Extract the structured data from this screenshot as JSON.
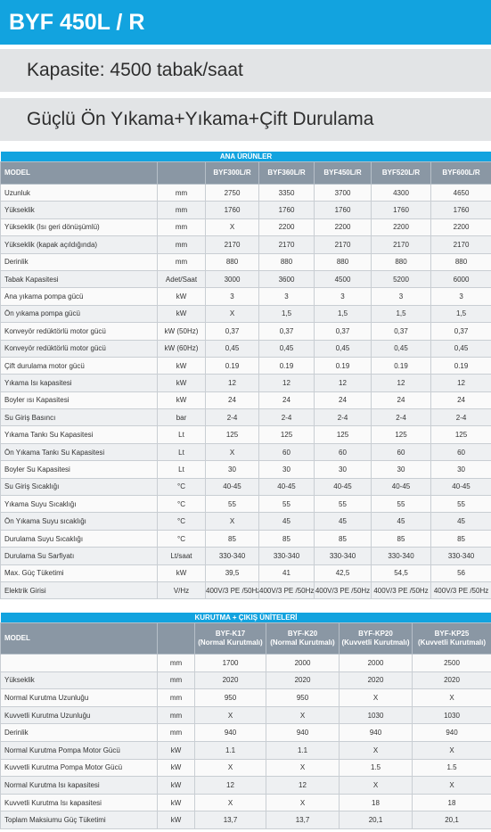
{
  "header": {
    "title": "BYF 450L / R"
  },
  "capacity": "Kapasite: 4500 tabak/saat",
  "subtitle": "Güçlü Ön Yıkama+Yıkama+Çift Durulama",
  "tables": [
    {
      "title": "ANA ÜRÜNLER",
      "model_label": "MODEL",
      "columns": [
        [
          "BYF300L/R"
        ],
        [
          "BYF360L/R"
        ],
        [
          "BYF450L/R"
        ],
        [
          "BYF520L/R"
        ],
        [
          "BYF600L/R"
        ]
      ],
      "rows": [
        [
          "Uzunluk",
          "mm",
          "2750",
          "3350",
          "3700",
          "4300",
          "4650"
        ],
        [
          "Yükseklik",
          "mm",
          "1760",
          "1760",
          "1760",
          "1760",
          "1760"
        ],
        [
          "Yükseklik (Isı geri dönüşümlü)",
          "mm",
          "X",
          "2200",
          "2200",
          "2200",
          "2200"
        ],
        [
          "Yükseklik (kapak açıldığında)",
          "mm",
          "2170",
          "2170",
          "2170",
          "2170",
          "2170"
        ],
        [
          "Derinlik",
          "mm",
          "880",
          "880",
          "880",
          "880",
          "880"
        ],
        [
          "Tabak Kapasitesi",
          "Adet/Saat",
          "3000",
          "3600",
          "4500",
          "5200",
          "6000"
        ],
        [
          "Ana yıkama pompa gücü",
          "kW",
          "3",
          "3",
          "3",
          "3",
          "3"
        ],
        [
          "Ön yıkama pompa gücü",
          "kW",
          "X",
          "1,5",
          "1,5",
          "1,5",
          "1,5"
        ],
        [
          "Konveyör redüktörlü motor gücü",
          "kW (50Hz)",
          "0,37",
          "0,37",
          "0,37",
          "0,37",
          "0,37"
        ],
        [
          "Konveyör redüktörlü motor gücü",
          "kW (60Hz)",
          "0,45",
          "0,45",
          "0,45",
          "0,45",
          "0,45"
        ],
        [
          "Çift durulama motor gücü",
          "kW",
          "0.19",
          "0.19",
          "0.19",
          "0.19",
          "0.19"
        ],
        [
          "Yıkama Isı kapasitesi",
          "kW",
          "12",
          "12",
          "12",
          "12",
          "12"
        ],
        [
          "Boyler ısı Kapasitesi",
          "kW",
          "24",
          "24",
          "24",
          "24",
          "24"
        ],
        [
          "Su Giriş Basıncı",
          "bar",
          "2-4",
          "2-4",
          "2-4",
          "2-4",
          "2-4"
        ],
        [
          "Yıkama Tankı Su Kapasitesi",
          "Lt",
          "125",
          "125",
          "125",
          "125",
          "125"
        ],
        [
          "Ön Yıkama Tankı Su Kapasitesi",
          "Lt",
          "X",
          "60",
          "60",
          "60",
          "60"
        ],
        [
          "Boyler Su Kapasitesi",
          "Lt",
          "30",
          "30",
          "30",
          "30",
          "30"
        ],
        [
          "Su Giriş Sıcaklığı",
          "°C",
          "40-45",
          "40-45",
          "40-45",
          "40-45",
          "40-45"
        ],
        [
          "Yıkama Suyu Sıcaklığı",
          "°C",
          "55",
          "55",
          "55",
          "55",
          "55"
        ],
        [
          "Ön Yıkama Suyu sıcaklığı",
          "°C",
          "X",
          "45",
          "45",
          "45",
          "45"
        ],
        [
          "Durulama Suyu Sıcaklığı",
          "°C",
          "85",
          "85",
          "85",
          "85",
          "85"
        ],
        [
          "Durulama Su Sarfiyatı",
          "Lt/saat",
          "330-340",
          "330-340",
          "330-340",
          "330-340",
          "330-340"
        ],
        [
          "Max. Güç Tüketimi",
          "kW",
          "39,5",
          "41",
          "42,5",
          "54,5",
          "56"
        ],
        [
          "Elektrik Girisi",
          "V/Hz",
          "400V/3 PE /50Hz",
          "400V/3 PE /50Hz",
          "400V/3 PE /50Hz",
          "400V/3 PE /50Hz",
          "400V/3 PE /50Hz"
        ]
      ]
    },
    {
      "title": "KURUTMA + ÇIKIŞ ÜNİTELERİ",
      "model_label": "MODEL",
      "columns": [
        [
          "BYF-K17",
          "(Normal Kurutmalı)"
        ],
        [
          "BYF-K20",
          "(Normal Kurutmalı)"
        ],
        [
          "BYF-KP20",
          "(Kuvvetli Kurutmalı)"
        ],
        [
          "BYF-KP25",
          "(Kuvvetli Kurutmalı)"
        ]
      ],
      "rows": [
        [
          null,
          "mm",
          "1700",
          "2000",
          "2000",
          "2500"
        ],
        [
          "Yükseklik",
          "mm",
          "2020",
          "2020",
          "2020",
          "2020"
        ],
        [
          "Normal Kurutma Uzunluğu",
          "mm",
          "950",
          "950",
          "X",
          "X"
        ],
        [
          "Kuvvetli Kurutma Uzunluğu",
          "mm",
          "X",
          "X",
          "1030",
          "1030"
        ],
        [
          "Derinlik",
          "mm",
          "940",
          "940",
          "940",
          "940"
        ],
        [
          "Normal Kurutma Pompa Motor Gücü",
          "kW",
          "1.1",
          "1.1",
          "X",
          "X"
        ],
        [
          "Kuvvetli Kurutma Pompa Motor Gücü",
          "kW",
          "X",
          "X",
          "1.5",
          "1.5"
        ],
        [
          "Normal Kurutma Isı kapasitesi",
          "kW",
          "12",
          "12",
          "X",
          "X"
        ],
        [
          "Kuvvetli Kurutma Isı kapasitesi",
          "kW",
          "X",
          "X",
          "18",
          "18"
        ],
        [
          "Toplam Maksiumu Güç Tüketimi",
          "kW",
          "13,7",
          "13,7",
          "20,1",
          "20,1"
        ]
      ]
    }
  ]
}
